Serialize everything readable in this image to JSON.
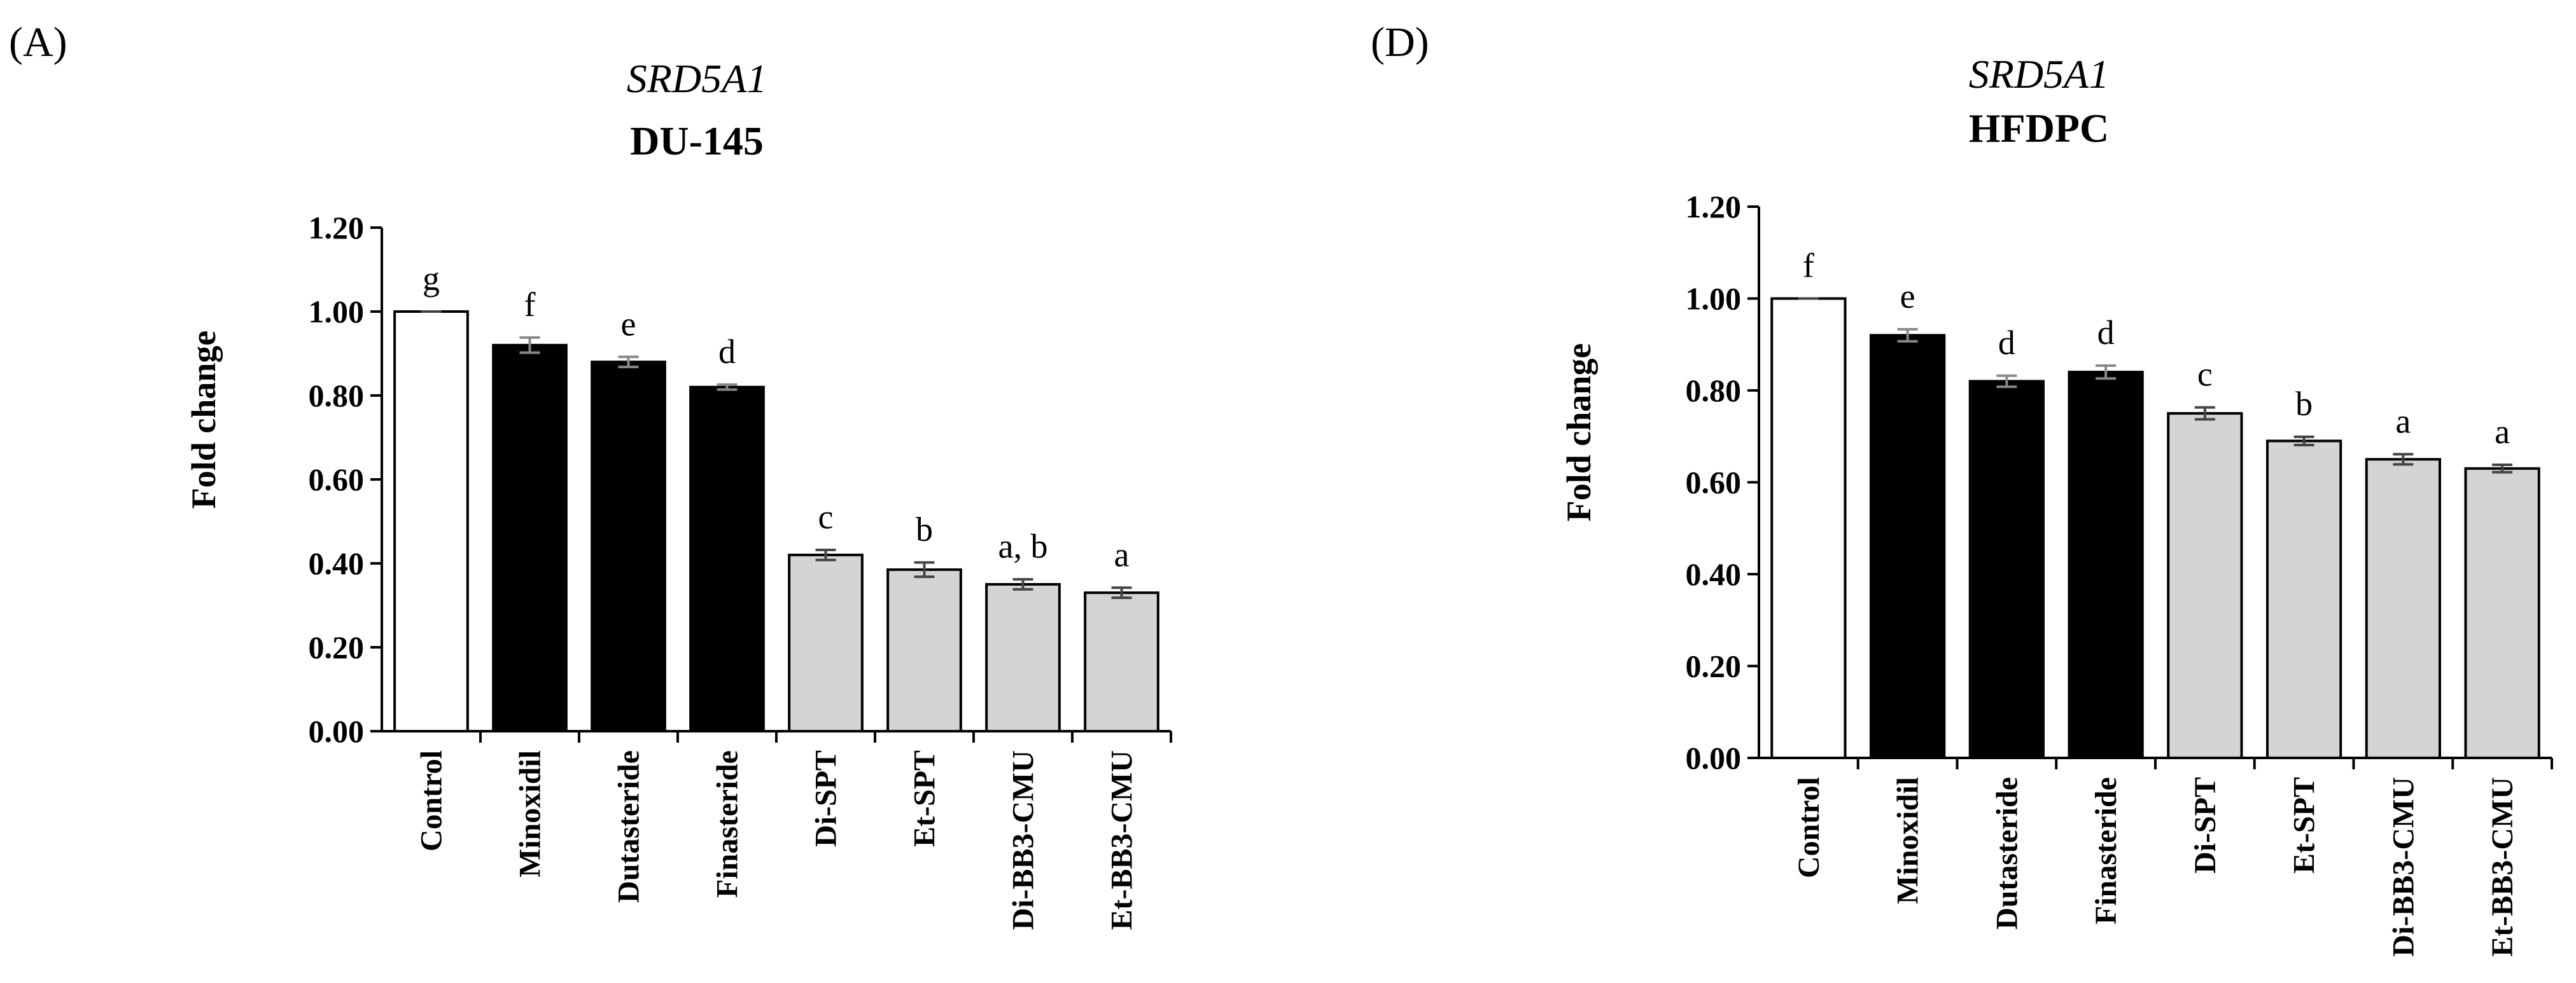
{
  "chart_data": [
    {
      "type": "bar",
      "panel_label": "(A)",
      "title": "SRD5A1",
      "subtitle": "DU-145",
      "xlabel": "",
      "ylabel": "Fold change",
      "ylim": [
        0,
        1.2
      ],
      "yticks": [
        "0.00",
        "0.20",
        "0.40",
        "0.60",
        "0.80",
        "1.00",
        "1.20"
      ],
      "grid": false,
      "categories": [
        "Control",
        "Minoxidil",
        "Dutasteride",
        "Finasteride",
        "Di-SPT",
        "Et-SPT",
        "Di-BB3-CMU",
        "Et-BB3-CMU"
      ],
      "values": [
        1.0,
        0.92,
        0.88,
        0.82,
        0.42,
        0.385,
        0.35,
        0.33
      ],
      "errors": [
        0.0,
        0.018,
        0.012,
        0.006,
        0.012,
        0.017,
        0.012,
        0.012
      ],
      "significance": [
        "g",
        "f",
        "e",
        "d",
        "c",
        "b",
        "a, b",
        "a"
      ],
      "bar_colors": [
        "#ffffff",
        "#000000",
        "#000000",
        "#000000",
        "#d4d4d4",
        "#d4d4d4",
        "#d4d4d4",
        "#d4d4d4"
      ]
    },
    {
      "type": "bar",
      "panel_label": "(D)",
      "title": "SRD5A1",
      "subtitle": "HFDPC",
      "xlabel": "",
      "ylabel": "Fold change",
      "ylim": [
        0,
        1.2
      ],
      "yticks": [
        "0.00",
        "0.20",
        "0.40",
        "0.60",
        "0.80",
        "1.00",
        "1.20"
      ],
      "grid": false,
      "categories": [
        "Control",
        "Minoxidil",
        "Dutasteride",
        "Finasteride",
        "Di-SPT",
        "Et-SPT",
        "Di-BB3-CMU",
        "Et-BB3-CMU"
      ],
      "values": [
        1.0,
        0.92,
        0.82,
        0.84,
        0.75,
        0.69,
        0.65,
        0.63
      ],
      "errors": [
        0.0,
        0.013,
        0.012,
        0.014,
        0.013,
        0.009,
        0.011,
        0.008
      ],
      "significance": [
        "f",
        "e",
        "d",
        "d",
        "c",
        "b",
        "a",
        "a"
      ],
      "bar_colors": [
        "#ffffff",
        "#000000",
        "#000000",
        "#000000",
        "#d4d4d4",
        "#d4d4d4",
        "#d4d4d4",
        "#d4d4d4"
      ]
    }
  ]
}
